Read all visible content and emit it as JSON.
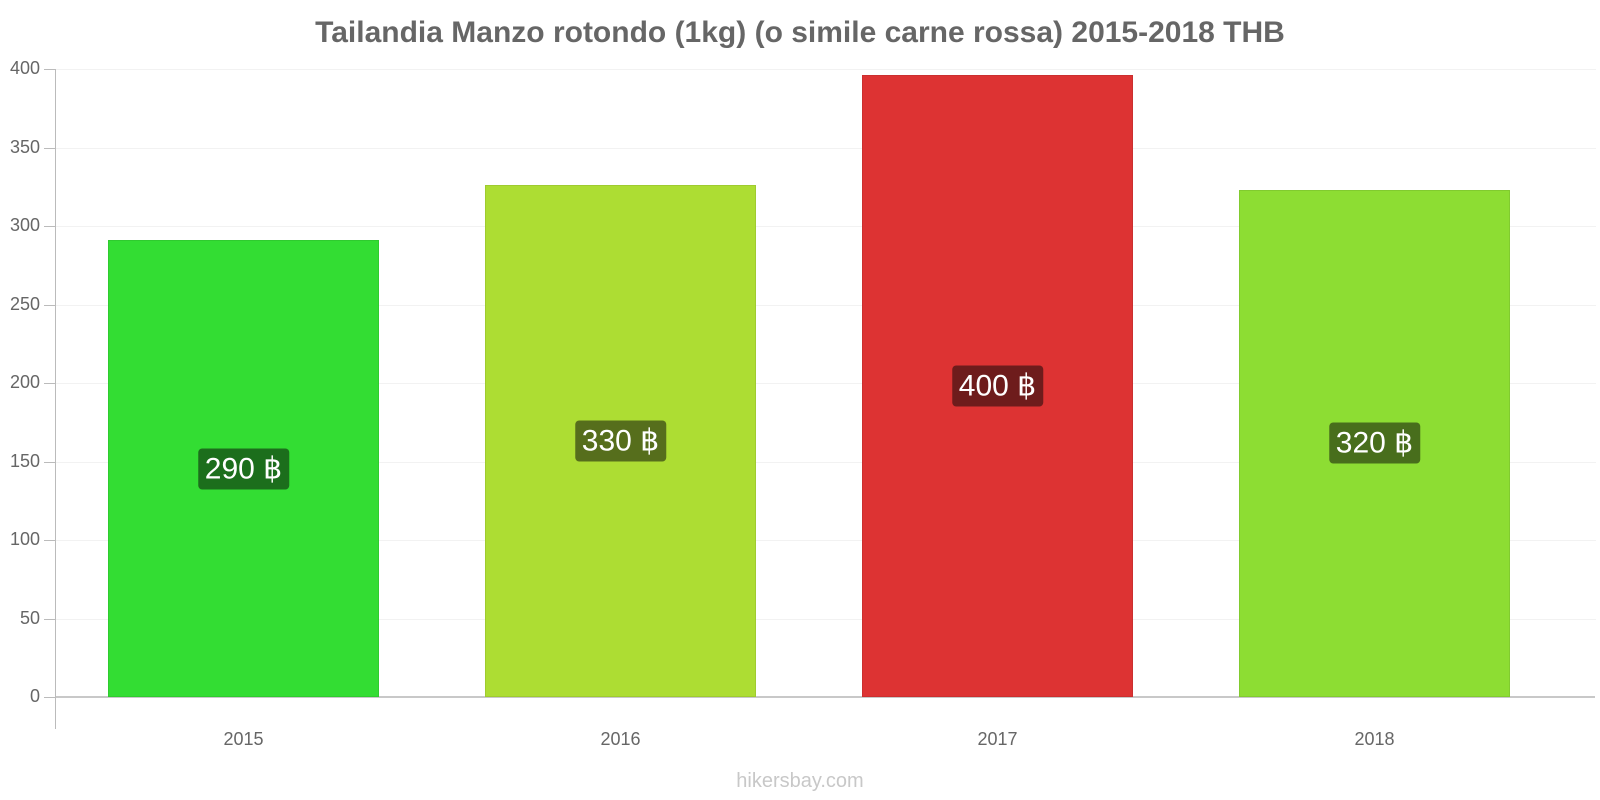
{
  "title": "Tailandia Manzo rotondo (1kg) (o simile carne rossa) 2015-2018 THB",
  "watermark": "hikersbay.com",
  "chart_data": {
    "type": "bar",
    "title": "Tailandia Manzo rotondo (1kg) (o simile carne rossa) 2015-2018 THB",
    "xlabel": "",
    "ylabel": "",
    "categories": [
      "2015",
      "2016",
      "2017",
      "2018"
    ],
    "values": [
      291,
      326,
      396,
      323
    ],
    "data_labels": [
      "290 ฿",
      "330 ฿",
      "400 ฿",
      "320 ฿"
    ],
    "ylim": [
      0,
      400
    ],
    "yticks": [
      "0",
      "50",
      "100",
      "150",
      "200",
      "250",
      "300",
      "350",
      "400"
    ],
    "grid": true,
    "legend": "none",
    "colors": [
      "#33dd33",
      "#addd33",
      "#dd3333",
      "#8ddd33"
    ],
    "label_colors": [
      "#1c6e1c",
      "#566e1c",
      "#6e1c1c",
      "#486e1c"
    ]
  }
}
